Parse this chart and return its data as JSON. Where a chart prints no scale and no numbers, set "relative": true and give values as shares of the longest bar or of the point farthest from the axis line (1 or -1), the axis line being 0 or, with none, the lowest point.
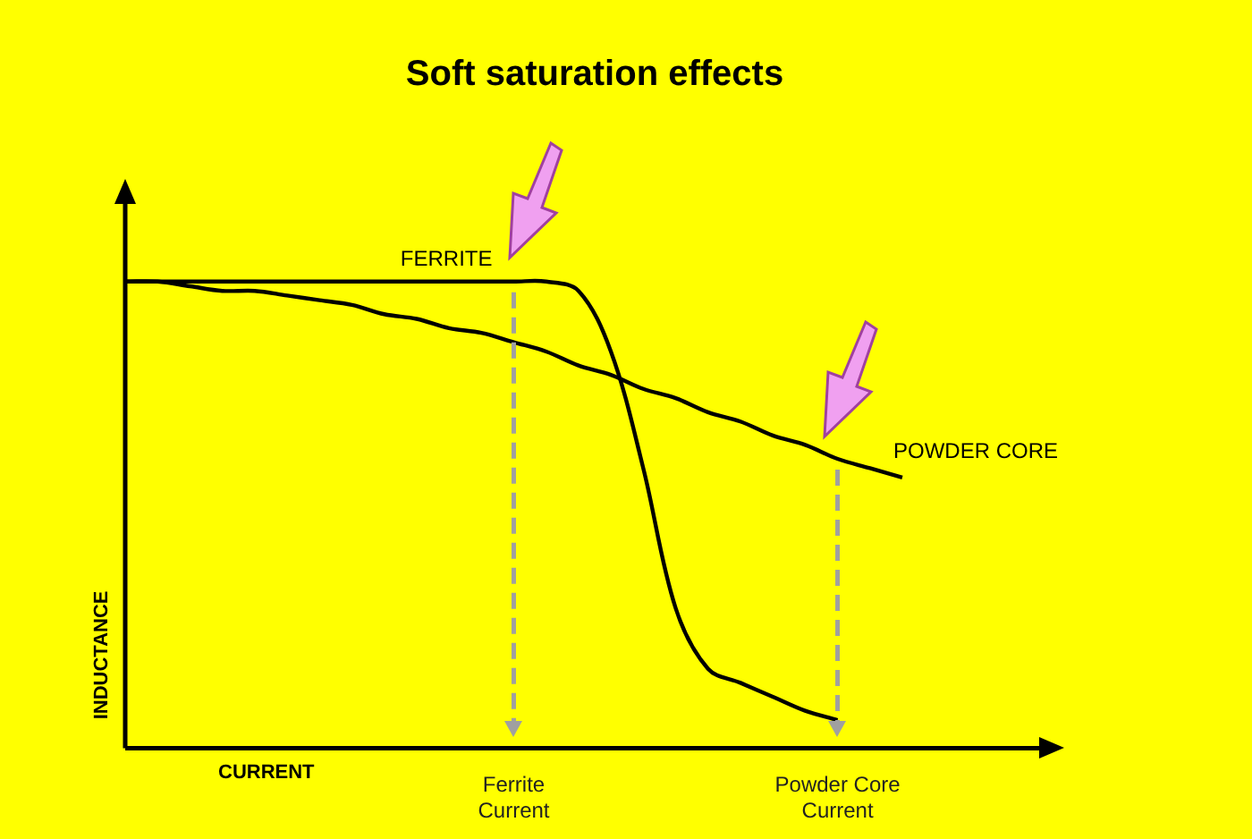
{
  "chart_data": {
    "type": "line",
    "title": "Soft saturation effects",
    "xlabel": "CURRENT",
    "ylabel": "INDUCTANCE",
    "relative": true,
    "legend": false,
    "categories": [
      null,
      null,
      null,
      null,
      null,
      null,
      null,
      null,
      null,
      null,
      null,
      null,
      "Ferrite Current",
      null,
      null,
      null,
      null,
      null,
      null,
      null,
      null,
      null,
      "Powder Core Current",
      null,
      null,
      null,
      null,
      null,
      null,
      null
    ],
    "series": [
      {
        "name": "FERRITE",
        "color": "#000000",
        "values": [
          1,
          1,
          1,
          1,
          1,
          1,
          1,
          1,
          1,
          1,
          1,
          1,
          1,
          1,
          0.98,
          0.85,
          0.6,
          0.3,
          0.17,
          0.14,
          0.11,
          0.08,
          0.06,
          null,
          null,
          null,
          null,
          null,
          null,
          null
        ]
      },
      {
        "name": "POWDER CORE",
        "color": "#000000",
        "values": [
          1,
          1,
          0.99,
          0.98,
          0.98,
          0.97,
          0.96,
          0.95,
          0.93,
          0.92,
          0.9,
          0.89,
          0.87,
          0.85,
          0.82,
          0.8,
          0.77,
          0.75,
          0.72,
          0.7,
          0.67,
          0.65,
          0.62,
          0.6,
          0.58,
          null,
          null,
          null,
          null,
          null
        ]
      }
    ],
    "ref_lines": [
      {
        "axis": "x",
        "value": "Ferrite Current",
        "color": "#a0a0a0",
        "line_style": "dashed"
      },
      {
        "axis": "x",
        "value": "Powder Core Current",
        "color": "#a0a0a0",
        "line_style": "dashed"
      }
    ]
  }
}
